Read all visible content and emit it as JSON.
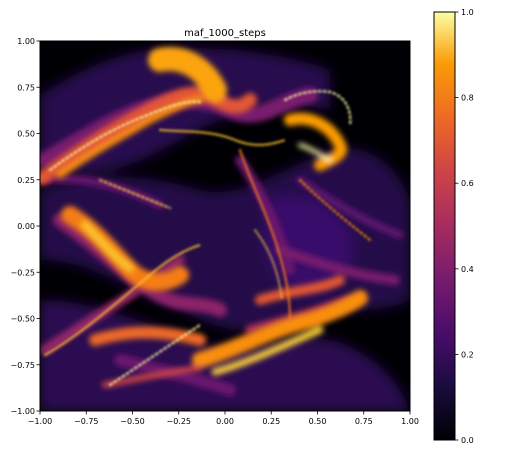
{
  "chart_data": {
    "type": "heatmap",
    "title": "maf_1000_steps",
    "xlabel": "",
    "ylabel": "",
    "xlim": [
      -1.0,
      1.0
    ],
    "ylim": [
      -1.0,
      1.0
    ],
    "xticks": [
      "−1.00",
      "−0.75",
      "−0.50",
      "−0.25",
      "0.00",
      "0.25",
      "0.50",
      "0.75",
      "1.00"
    ],
    "yticks": [
      "−1.00",
      "−0.75",
      "−0.50",
      "−0.25",
      "0.00",
      "0.25",
      "0.50",
      "0.75",
      "1.00"
    ],
    "colormap": "inferno",
    "colorbar": {
      "range": [
        0.0,
        1.0
      ],
      "ticks": [
        "0.0",
        "0.2",
        "0.4",
        "0.6",
        "0.8",
        "1.0"
      ]
    },
    "grid": false
  }
}
